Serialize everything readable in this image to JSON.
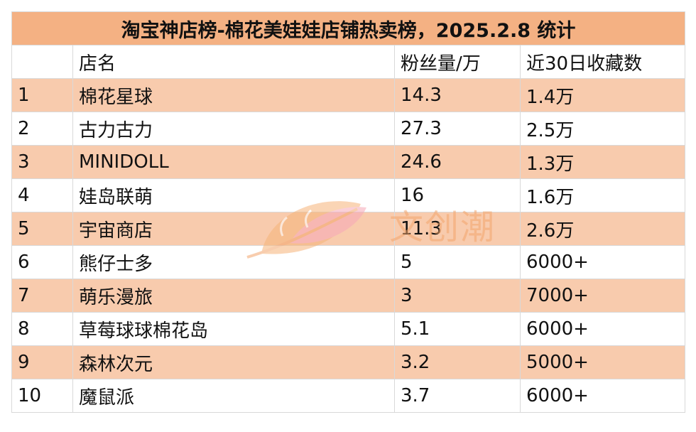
{
  "table": {
    "title": "淘宝神店榜-棉花美娃娃店铺热卖榜，2025.2.8 统计",
    "headers": [
      "",
      "店名",
      "粉丝量/万",
      "近30日收藏数"
    ],
    "rows": [
      [
        "1",
        "棉花星球",
        "14.3",
        "1.4万"
      ],
      [
        "2",
        "古力古力",
        "27.3",
        "2.5万"
      ],
      [
        "3",
        "MINIDOLL",
        "24.6",
        "1.3万"
      ],
      [
        "4",
        "娃岛联萌",
        "16",
        "1.6万"
      ],
      [
        "5",
        "宇宙商店",
        "11.3",
        "2.6万"
      ],
      [
        "6",
        "熊仔士多",
        "5",
        "6000+"
      ],
      [
        "7",
        "萌乐漫旅",
        "3",
        "7000+"
      ],
      [
        "8",
        "草莓球球棉花岛",
        "5.1",
        "6000+"
      ],
      [
        "9",
        "森林次元",
        "3.2",
        "5000+"
      ],
      [
        "10",
        "魔鼠派",
        "3.7",
        "6000+"
      ]
    ]
  },
  "watermark": {
    "text": "文创潮",
    "logo_icon": "leaf-logo-icon"
  },
  "colors": {
    "title_bg": "#f4b183",
    "stripe_bg": "#f8cbad",
    "watermark": "#f3a56c"
  }
}
